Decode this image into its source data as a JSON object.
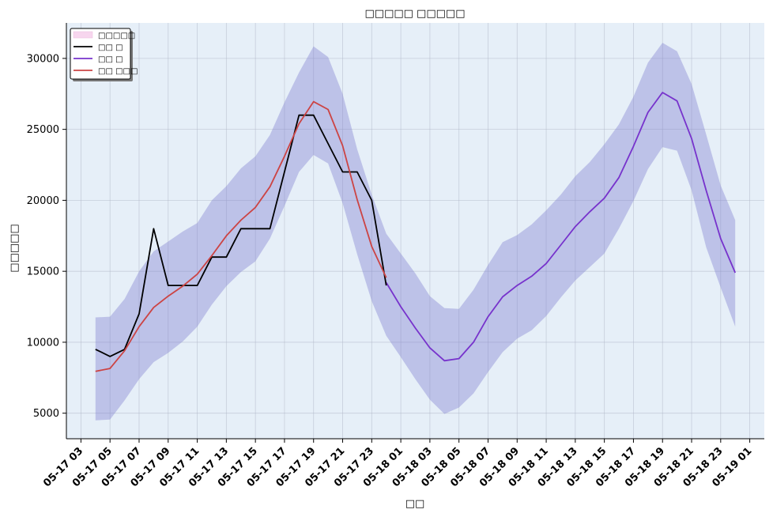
{
  "chart_data": {
    "type": "line",
    "title": "□□□□□ □□□□□",
    "xlabel": "□□",
    "ylabel": "□□□□□",
    "ylim": [
      3200,
      32500
    ],
    "xlim": [
      "05-17 02:00",
      "05-19 02:00"
    ],
    "grid": true,
    "legend_position": "top-left",
    "y_ticks": [
      5000,
      10000,
      15000,
      20000,
      25000,
      30000
    ],
    "x_ticks": [
      "05-17 03",
      "05-17 05",
      "05-17 07",
      "05-17 09",
      "05-17 11",
      "05-17 13",
      "05-17 15",
      "05-17 17",
      "05-17 19",
      "05-17 21",
      "05-17 23",
      "05-18 01",
      "05-18 03",
      "05-18 05",
      "05-18 07",
      "05-18 09",
      "05-18 11",
      "05-18 13",
      "05-18 15",
      "05-18 17",
      "05-18 19",
      "05-18 21",
      "05-18 23",
      "05-19 01"
    ],
    "x_start": "05-17 04:00",
    "x_step_hours": 1,
    "band": {
      "name": "□□□□□",
      "color": "#8080d0",
      "lower": [
        4500,
        4550,
        5900,
        7400,
        8600,
        9250,
        10050,
        11100,
        12650,
        13950,
        14950,
        15700,
        17300,
        19600,
        22000,
        23200,
        22600,
        19800,
        16200,
        12900,
        10450,
        8950,
        7400,
        5950,
        4950,
        5400,
        6400,
        7900,
        9300,
        10250,
        10850,
        11850,
        13150,
        14350,
        15300,
        16250,
        18000,
        19950,
        22200,
        23750,
        23500,
        20700,
        16700,
        13850,
        11100
      ],
      "upper": [
        11750,
        11800,
        13050,
        15000,
        16400,
        17100,
        17800,
        18400,
        20000,
        21000,
        22250,
        23100,
        24600,
        26900,
        29000,
        30850,
        30100,
        27500,
        23600,
        20400,
        17650,
        16250,
        14850,
        13250,
        12400,
        12350,
        13700,
        15450,
        17050,
        17550,
        18300,
        19300,
        20400,
        21700,
        22700,
        23950,
        25350,
        27300,
        29700,
        31100,
        30500,
        28200,
        24650,
        21050,
        18600
      ]
    },
    "series": [
      {
        "name": "□□ □",
        "color": "#000000",
        "values": [
          9500,
          9000,
          9500,
          12000,
          18000,
          14000,
          14000,
          14000,
          16000,
          16000,
          18000,
          18000,
          18000,
          22000,
          26000,
          26000,
          24000,
          22000,
          22000,
          20000,
          14000
        ]
      },
      {
        "name": "□□ □",
        "color": "#7733cc",
        "start_index": 20,
        "values": [
          14200,
          12500,
          11000,
          9600,
          8700,
          8850,
          10000,
          11800,
          13200,
          14000,
          14650,
          15550,
          16850,
          18150,
          19200,
          20150,
          21600,
          23800,
          26200,
          27600,
          27000,
          24350,
          20700,
          17300,
          14900
        ]
      },
      {
        "name": "□□ □□□",
        "color": "#cc4444",
        "values": [
          7950,
          8150,
          9400,
          11100,
          12450,
          13250,
          13950,
          14800,
          16100,
          17500,
          18600,
          19500,
          20950,
          23100,
          25400,
          26950,
          26400,
          23850,
          20050,
          16750,
          14550
        ]
      }
    ]
  }
}
